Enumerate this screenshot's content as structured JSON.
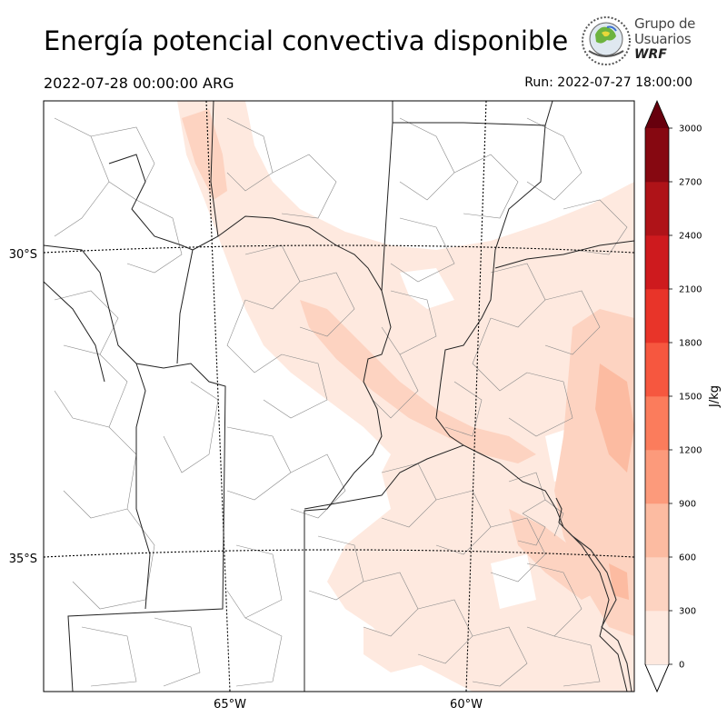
{
  "header": {
    "title": "Energía potencial convectiva disponible",
    "valid_time": "2022-07-28 00:00:00 ARG",
    "run_time": "Run: 2022-07-27 18:00:00"
  },
  "logo": {
    "line1": "Grupo de",
    "line2": "Usuarios",
    "line3": "WRF"
  },
  "map": {
    "latitude_labels": [
      "30°S",
      "35°S"
    ],
    "longitude_labels": [
      "65°W",
      "60°W"
    ]
  },
  "colorbar": {
    "unit": "J/kg",
    "levels": [
      0,
      300,
      600,
      900,
      1200,
      1500,
      1800,
      2100,
      2400,
      2700,
      3000
    ],
    "colors": [
      "#fee9df",
      "#fdd3c1",
      "#fcbba1",
      "#fc9a7b",
      "#fb7c5c",
      "#f6573f",
      "#e83429",
      "#ce1a1e",
      "#af1318",
      "#860811"
    ],
    "extend": "both",
    "over_color": "#67000d",
    "under_color": "#ffffff"
  }
}
